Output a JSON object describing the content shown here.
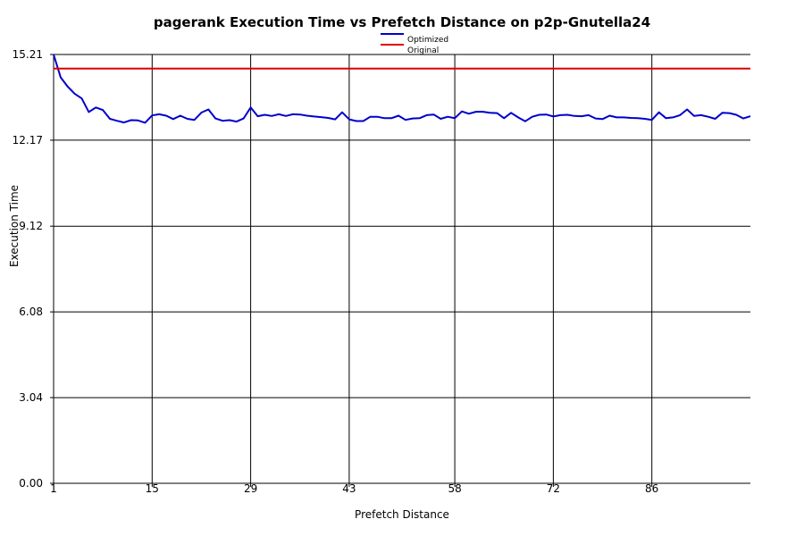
{
  "chart_data": {
    "type": "line",
    "title": "pagerank Execution Time vs Prefetch Distance on p2p-Gnutella24",
    "xlabel": "Prefetch Distance",
    "ylabel": "Execution Time",
    "xlim": [
      1,
      100
    ],
    "ylim": [
      0,
      15.21
    ],
    "x_ticks": [
      1,
      15,
      29,
      43,
      58,
      72,
      86
    ],
    "y_ticks": [
      "0.00",
      "3.04",
      "6.08",
      "9.12",
      "12.17",
      "15.21"
    ],
    "grid": true,
    "legend_position": "top-center",
    "series": [
      {
        "name": "Optimized",
        "color": "#0000cc",
        "x": [
          1,
          2,
          3,
          4,
          5,
          6,
          7,
          8,
          9,
          10,
          11,
          12,
          13,
          14,
          15,
          16,
          17,
          18,
          19,
          20,
          21,
          22,
          23,
          24,
          25,
          26,
          27,
          28,
          29,
          30,
          31,
          32,
          33,
          34,
          35,
          36,
          37,
          38,
          39,
          40,
          41,
          42,
          43,
          44,
          45,
          46,
          47,
          48,
          49,
          50,
          51,
          52,
          53,
          54,
          55,
          56,
          57,
          58,
          59,
          60,
          61,
          62,
          63,
          64,
          65,
          66,
          67,
          68,
          69,
          70,
          71,
          72,
          73,
          74,
          75,
          76,
          77,
          78,
          79,
          80,
          81,
          82,
          83,
          84,
          85,
          86,
          87,
          88,
          89,
          90,
          91,
          92,
          93,
          94,
          95,
          96,
          97,
          98,
          99,
          100
        ],
        "values": [
          15.21,
          14.4,
          14.07,
          13.82,
          13.65,
          13.17,
          13.33,
          13.24,
          12.93,
          12.86,
          12.8,
          12.88,
          12.87,
          12.79,
          13.05,
          13.09,
          13.04,
          12.92,
          13.04,
          12.93,
          12.89,
          13.15,
          13.26,
          12.94,
          12.86,
          12.88,
          12.83,
          12.94,
          13.33,
          13.02,
          13.07,
          13.03,
          13.09,
          13.03,
          13.09,
          13.08,
          13.04,
          13.01,
          12.99,
          12.96,
          12.91,
          13.16,
          12.91,
          12.85,
          12.85,
          13.0,
          13.0,
          12.95,
          12.95,
          13.04,
          12.89,
          12.94,
          12.95,
          13.06,
          13.08,
          12.93,
          13.0,
          12.95,
          13.19,
          13.11,
          13.18,
          13.18,
          13.14,
          13.13,
          12.95,
          13.14,
          12.98,
          12.84,
          13.0,
          13.07,
          13.08,
          13.01,
          13.06,
          13.07,
          13.03,
          13.02,
          13.06,
          12.94,
          12.92,
          13.04,
          12.98,
          12.98,
          12.96,
          12.95,
          12.93,
          12.89,
          13.16,
          12.95,
          12.98,
          13.06,
          13.26,
          13.03,
          13.06,
          13.0,
          12.93,
          13.14,
          13.13,
          13.07,
          12.94,
          13.02
        ]
      },
      {
        "name": "Original",
        "color": "#dd0000",
        "x": [
          1,
          100
        ],
        "values": [
          14.71,
          14.71
        ]
      }
    ]
  }
}
